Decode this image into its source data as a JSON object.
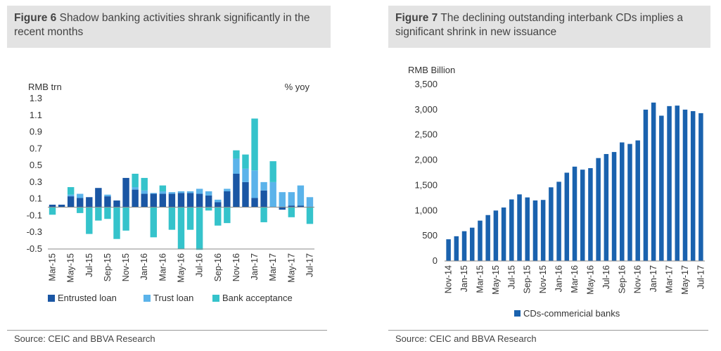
{
  "fig6": {
    "title_bold": "Figure 6",
    "title_rest": " Shadow banking activities shrank significantly in the recent months",
    "source": "Source: CEIC and BBVA Research"
  },
  "fig7": {
    "title_bold": "Figure 7",
    "title_rest": " The declining outstanding interbank CDs implies a significant shrink in new issuance",
    "source": "Source: CEIC and BBVA Research"
  },
  "colors": {
    "entrusted": "#1a56a4",
    "trust": "#5bb3ea",
    "bank": "#35c3cb",
    "cds": "#1a62ae"
  },
  "chart_data": [
    {
      "type": "bar",
      "stacked": true,
      "ylabel": "RMB trn",
      "ylabel_right": "% yoy",
      "ylim": [
        -0.5,
        1.3
      ],
      "yticks": [
        "1.3",
        "1.1",
        "0.9",
        "0.7",
        "0.5",
        "0.3",
        "0.1",
        "-0.1",
        "-0.3",
        "-0.5"
      ],
      "ytick_values": [
        1.3,
        1.1,
        0.9,
        0.7,
        0.5,
        0.3,
        0.1,
        -0.1,
        -0.3,
        -0.5
      ],
      "categories": [
        "Mar-15",
        "Apr-15",
        "May-15",
        "Jun-15",
        "Jul-15",
        "Aug-15",
        "Sep-15",
        "Oct-15",
        "Nov-15",
        "Dec-15",
        "Jan-16",
        "Feb-16",
        "Mar-16",
        "Apr-16",
        "May-16",
        "Jun-16",
        "Jul-16",
        "Aug-16",
        "Sep-16",
        "Oct-16",
        "Nov-16",
        "Dec-16",
        "Jan-17",
        "Feb-17",
        "Mar-17",
        "Apr-17",
        "May-17",
        "Jun-17",
        "Jul-17"
      ],
      "tick_labels": [
        "Mar-15",
        "May-15",
        "Jul-15",
        "Sep-15",
        "Nov-15",
        "Jan-16",
        "Mar-16",
        "May-16",
        "Jul-16",
        "Sep-16",
        "Nov-16",
        "Jan-17",
        "Mar-17",
        "May-17",
        "Jul-17"
      ],
      "legend": [
        "Entrusted loan",
        "Trust loan",
        "Bank acceptance"
      ],
      "series": [
        {
          "name": "Entrusted loan",
          "values": [
            0.03,
            0.03,
            0.13,
            0.11,
            0.12,
            0.23,
            0.13,
            0.08,
            0.35,
            0.21,
            0.16,
            0.16,
            0.16,
            0.16,
            0.17,
            0.17,
            0.16,
            0.14,
            0.06,
            0.19,
            0.4,
            0.3,
            0.11,
            0.2,
            0.0,
            -0.03,
            0.02,
            0.02,
            0.0
          ]
        },
        {
          "name": "Trust loan",
          "values": [
            0.0,
            0.0,
            0.02,
            0.05,
            0.0,
            0.0,
            0.02,
            0.0,
            0.0,
            0.03,
            0.04,
            0.01,
            0.03,
            0.02,
            0.02,
            0.02,
            0.06,
            0.05,
            0.03,
            0.03,
            0.18,
            0.16,
            0.33,
            0.1,
            0.3,
            0.18,
            0.16,
            0.24,
            0.12
          ]
        },
        {
          "name": "Bank acceptance",
          "values": [
            -0.09,
            0.0,
            0.09,
            -0.07,
            -0.32,
            -0.16,
            -0.14,
            -0.38,
            -0.28,
            0.16,
            0.15,
            -0.36,
            0.07,
            -0.27,
            -0.5,
            -0.27,
            -0.51,
            -0.04,
            -0.22,
            -0.19,
            0.1,
            0.17,
            0.62,
            -0.18,
            0.25,
            0.0,
            -0.12,
            0.0,
            -0.2
          ]
        }
      ]
    },
    {
      "type": "bar",
      "ylabel": "RMB Billion",
      "ylim": [
        0,
        3500
      ],
      "yticks": [
        "3,500",
        "3,000",
        "2,500",
        "2,000",
        "1,500",
        "1,000",
        "500",
        "0"
      ],
      "ytick_values": [
        3500,
        3000,
        2500,
        2000,
        1500,
        1000,
        500,
        0
      ],
      "categories": [
        "Nov-14",
        "Dec-14",
        "Jan-15",
        "Feb-15",
        "Mar-15",
        "Apr-15",
        "May-15",
        "Jun-15",
        "Jul-15",
        "Aug-15",
        "Sep-15",
        "Oct-15",
        "Nov-15",
        "Dec-15",
        "Jan-16",
        "Feb-16",
        "Mar-16",
        "Apr-16",
        "May-16",
        "Jun-16",
        "Jul-16",
        "Aug-16",
        "Sep-16",
        "Oct-16",
        "Nov-16",
        "Dec-16",
        "Jan-17",
        "Feb-17",
        "Mar-17",
        "Apr-17",
        "May-17",
        "Jun-17",
        "Jul-17"
      ],
      "tick_labels": [
        "Nov-14",
        "Jan-15",
        "Mar-15",
        "May-15",
        "Jul-15",
        "Sep-15",
        "Nov-15",
        "Jan-16",
        "Mar-16",
        "May-16",
        "Jul-16",
        "Sep-16",
        "Nov-16",
        "Jan-17",
        "Mar-17",
        "May-17",
        "Jul-17"
      ],
      "legend": [
        "CDs-commericial banks"
      ],
      "series": [
        {
          "name": "CDs-commericial banks",
          "values": [
            430,
            490,
            590,
            660,
            800,
            910,
            1000,
            1060,
            1220,
            1320,
            1260,
            1200,
            1210,
            1460,
            1570,
            1750,
            1870,
            1810,
            1840,
            2040,
            2120,
            2160,
            2350,
            2320,
            2390,
            3000,
            3140,
            2880,
            3070,
            3080,
            3000,
            2970,
            2930
          ]
        }
      ]
    }
  ]
}
